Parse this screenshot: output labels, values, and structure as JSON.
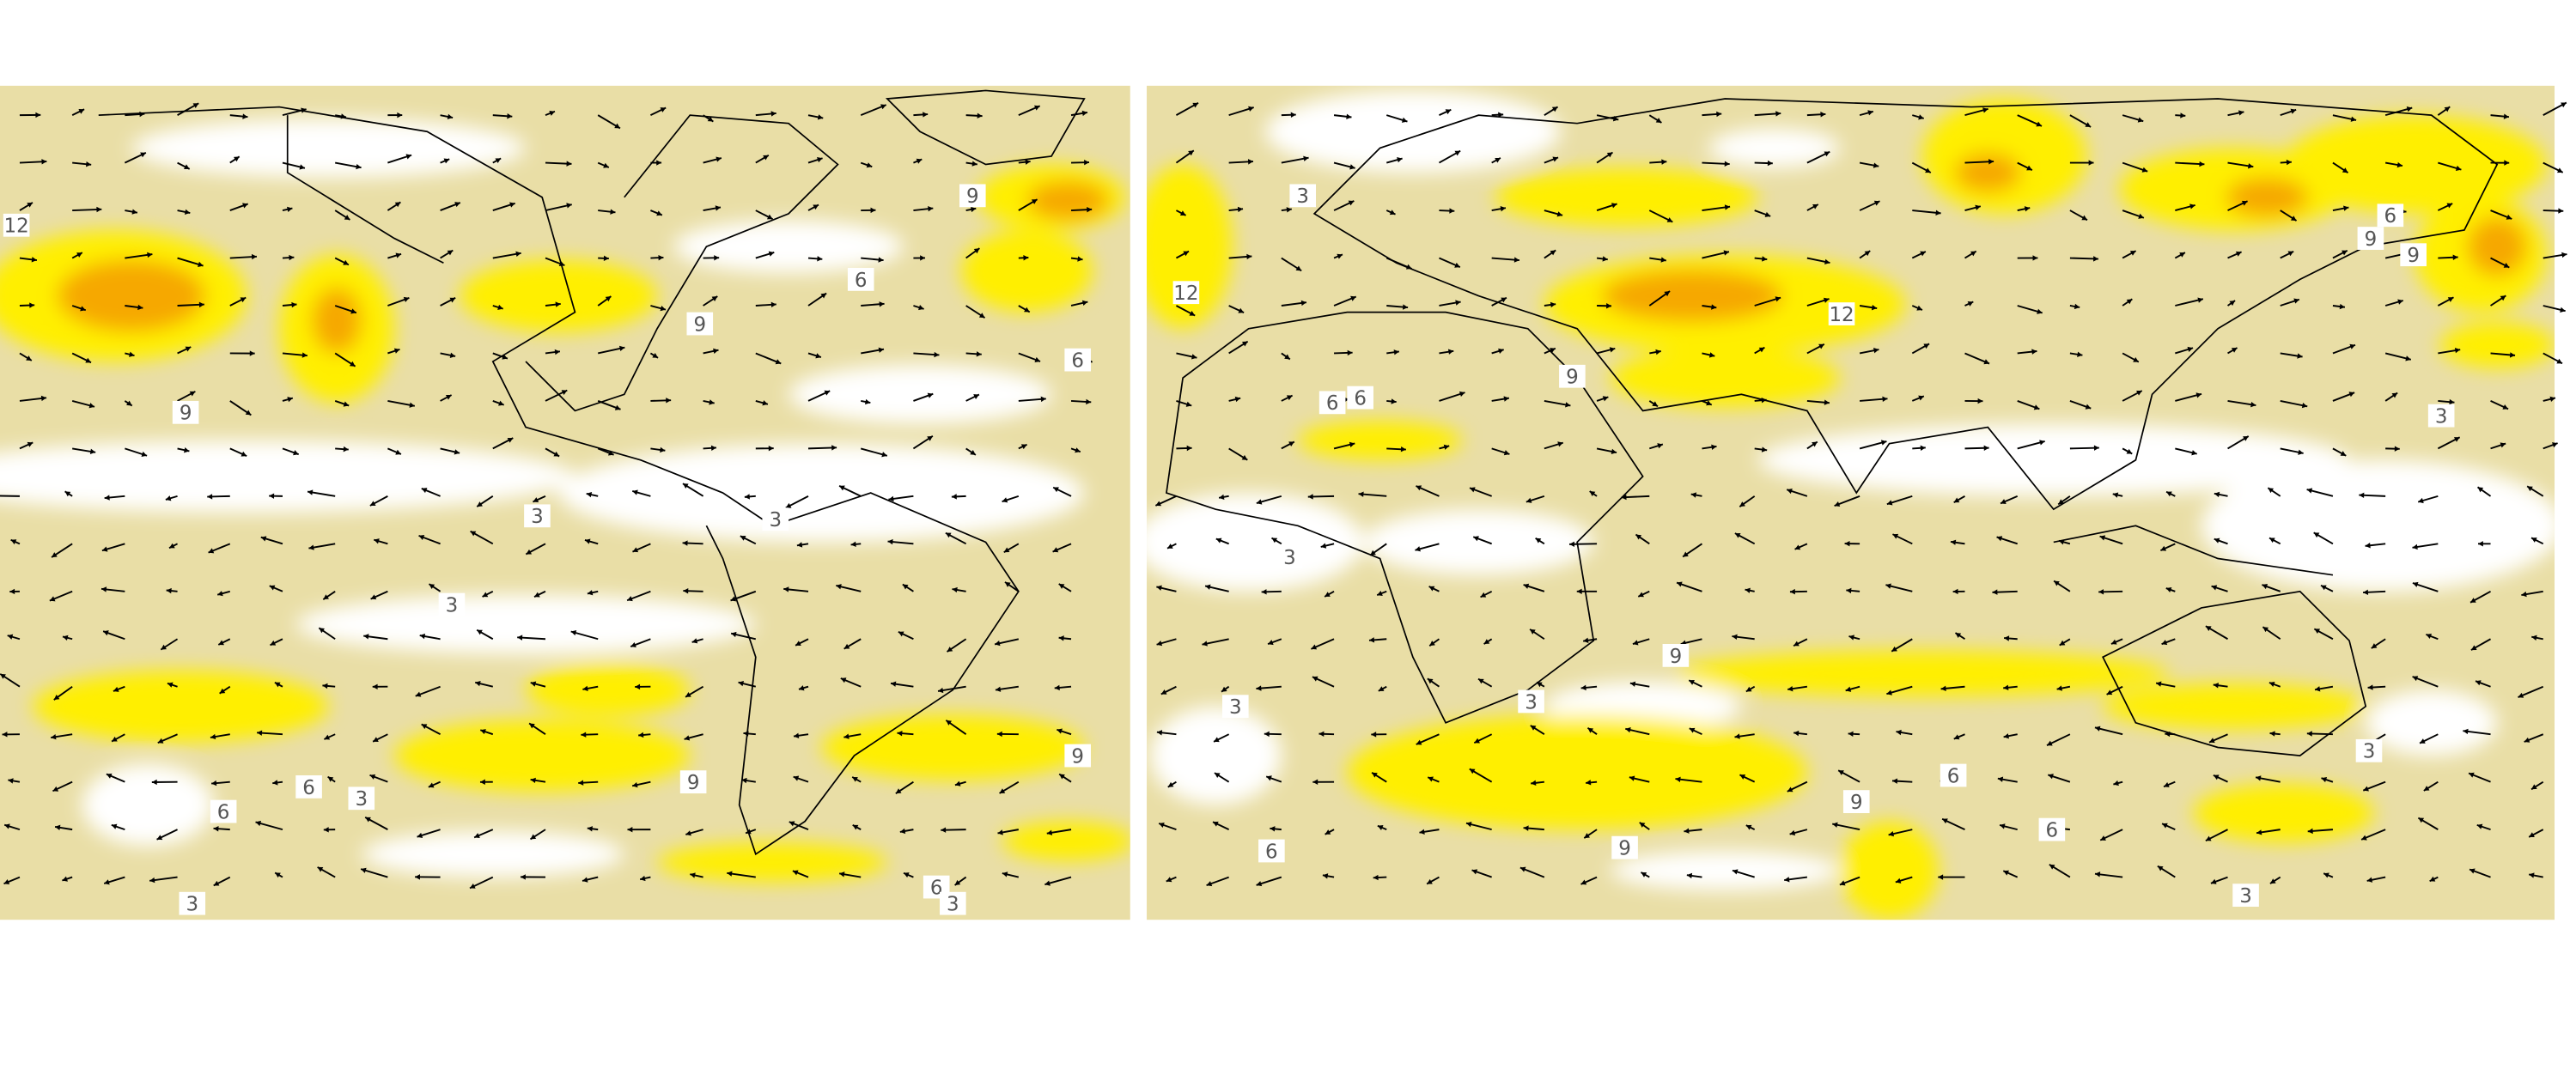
{
  "panels": [
    {
      "contour_labels": [
        12,
        9,
        6,
        9,
        6,
        9,
        3,
        3,
        3,
        9,
        9,
        6,
        3,
        6,
        6,
        3,
        3
      ]
    },
    {
      "contour_labels": [
        3,
        12,
        6,
        9,
        9,
        12,
        9,
        6,
        6,
        3,
        3,
        9,
        3,
        3,
        3,
        6,
        9,
        6,
        6,
        9,
        3
      ]
    }
  ]
}
